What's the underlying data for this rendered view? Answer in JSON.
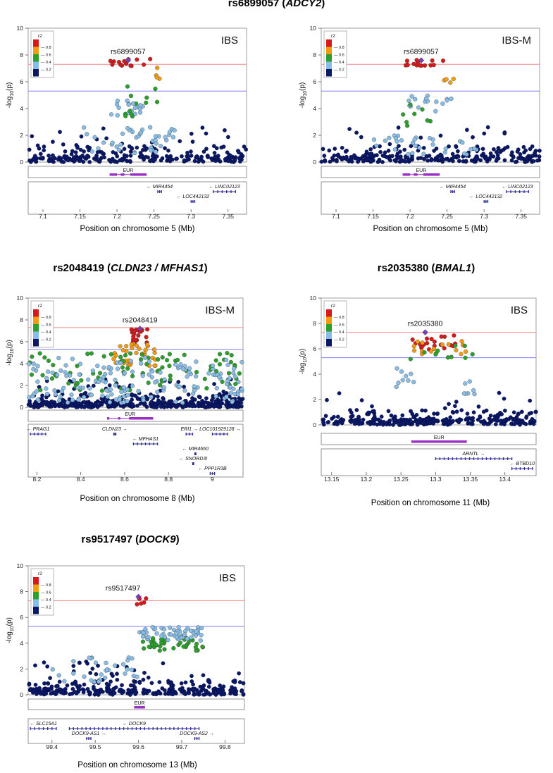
{
  "chart_data": [
    {
      "type": "scatter",
      "title": {
        "snp": "rs6899057",
        "gene": "ADCY2"
      },
      "label": "IBS",
      "lead_snp": "rs6899057",
      "lead": {
        "x": 7.215,
        "y": 7.6
      },
      "ylabel": "-log10(p)",
      "xlabel": "Position on chromosome 5 (Mb)",
      "xlim": [
        7.08,
        7.375
      ],
      "ylim": [
        0,
        10
      ],
      "xticks": [
        7.1,
        7.15,
        7.2,
        7.25,
        7.3,
        7.35
      ],
      "yticks": [
        0,
        2,
        4,
        6,
        8,
        10
      ],
      "genome_wide_threshold": 7.3,
      "suggestive_threshold": 5.3,
      "legend": {
        "title": "r2",
        "levels": [
          "0.8",
          "0.6",
          "0.4",
          "0.2"
        ],
        "colors": [
          "#d7191c",
          "#f39c12",
          "#2ca02c",
          "#87bde6",
          "#0b1863"
        ]
      },
      "ld_track": {
        "label": "EUR",
        "segments": [
          [
            7.19,
            7.2
          ],
          [
            7.205,
            7.21
          ],
          [
            7.218,
            7.24
          ]
        ]
      },
      "background_density": 260,
      "clusters": [
        {
          "x": [
            7.19,
            7.245
          ],
          "y": [
            7.15,
            7.75
          ],
          "n": 14,
          "color": "red"
        },
        {
          "x": [
            7.245,
            7.26
          ],
          "y": [
            6.1,
            7.2
          ],
          "n": 4,
          "color": "orange"
        },
        {
          "x": [
            7.21,
            7.255
          ],
          "y": [
            4.3,
            5.8
          ],
          "n": 7,
          "color": "green"
        },
        {
          "x": [
            7.19,
            7.235
          ],
          "y": [
            3.4,
            4.6
          ],
          "n": 18,
          "color": "lightblue"
        },
        {
          "x": [
            7.19,
            7.24
          ],
          "y": [
            3.4,
            3.9
          ],
          "n": 5,
          "color": "green"
        },
        {
          "x": [
            7.15,
            7.28
          ],
          "y": [
            0.6,
            2.6
          ],
          "n": 40,
          "color": "lightblue"
        }
      ],
      "genes": [
        {
          "name": "MIR4454",
          "start": 7.255,
          "end": 7.26,
          "strand": "-",
          "row": 0
        },
        {
          "name": "LINC02123",
          "start": 7.33,
          "end": 7.36,
          "strand": "-",
          "row": 0
        },
        {
          "name": "LOC442132",
          "start": 7.3,
          "end": 7.305,
          "strand": "-",
          "row": 1
        }
      ]
    },
    {
      "type": "scatter",
      "title": {
        "snp": "",
        "gene": ""
      },
      "label": "IBS-M",
      "lead_snp": "rs6899057",
      "lead": {
        "x": 7.215,
        "y": 7.6
      },
      "ylabel": "-log10(p)",
      "xlabel": "Position on chromosome 5 (Mb)",
      "xlim": [
        7.08,
        7.375
      ],
      "ylim": [
        0,
        10
      ],
      "xticks": [
        7.1,
        7.15,
        7.2,
        7.25,
        7.3,
        7.35
      ],
      "yticks": [
        0,
        2,
        4,
        6,
        8,
        10
      ],
      "genome_wide_threshold": 7.3,
      "suggestive_threshold": 5.3,
      "legend": {
        "title": "r2",
        "levels": [
          "0.8",
          "0.6",
          "0.4",
          "0.2"
        ],
        "colors": [
          "#d7191c",
          "#f39c12",
          "#2ca02c",
          "#87bde6",
          "#0b1863"
        ]
      },
      "ld_track": {
        "label": "EUR",
        "segments": [
          [
            7.19,
            7.2
          ],
          [
            7.205,
            7.21
          ],
          [
            7.218,
            7.24
          ]
        ]
      },
      "background_density": 260,
      "clusters": [
        {
          "x": [
            7.19,
            7.245
          ],
          "y": [
            7.15,
            7.75
          ],
          "n": 14,
          "color": "red"
        },
        {
          "x": [
            7.245,
            7.26
          ],
          "y": [
            5.8,
            6.3
          ],
          "n": 4,
          "color": "orange"
        },
        {
          "x": [
            7.19,
            7.26
          ],
          "y": [
            3.7,
            5.0
          ],
          "n": 16,
          "color": "lightblue"
        },
        {
          "x": [
            7.19,
            7.24
          ],
          "y": [
            2.5,
            4.4
          ],
          "n": 8,
          "color": "green"
        },
        {
          "x": [
            7.15,
            7.29
          ],
          "y": [
            0.5,
            2.0
          ],
          "n": 30,
          "color": "lightblue"
        }
      ],
      "genes": [
        {
          "name": "MIR4454",
          "start": 7.255,
          "end": 7.26,
          "strand": "-",
          "row": 0
        },
        {
          "name": "LINC02123",
          "start": 7.33,
          "end": 7.36,
          "strand": "-",
          "row": 0
        },
        {
          "name": "LOC442132",
          "start": 7.3,
          "end": 7.305,
          "strand": "-",
          "row": 1
        }
      ]
    },
    {
      "type": "scatter",
      "title": {
        "snp": "rs2048419",
        "gene": "CLDN23 / MFHAS1"
      },
      "label": "IBS-M",
      "lead_snp": "rs2048419",
      "lead": {
        "x": 8.67,
        "y": 7.2
      },
      "ylabel": "-log10(p)",
      "xlabel": "Position on chromosome 8 (Mb)",
      "xlim": [
        8.16,
        9.14
      ],
      "ylim": [
        0,
        10
      ],
      "xticks": [
        8.2,
        8.4,
        8.6,
        8.8,
        9
      ],
      "yticks": [
        0,
        2,
        4,
        6,
        8,
        10
      ],
      "genome_wide_threshold": 7.3,
      "suggestive_threshold": 5.3,
      "legend": {
        "title": "r2",
        "levels": [
          "0.8",
          "0.6",
          "0.4",
          "0.2"
        ],
        "colors": [
          "#d7191c",
          "#f39c12",
          "#2ca02c",
          "#87bde6",
          "#0b1863"
        ]
      },
      "ld_track": {
        "label": "EUR",
        "segments": [
          [
            8.52,
            8.53
          ],
          [
            8.57,
            8.58
          ],
          [
            8.62,
            8.73
          ]
        ]
      },
      "background_density": 420,
      "clusters": [
        {
          "x": [
            8.63,
            8.71
          ],
          "y": [
            5.8,
            7.2
          ],
          "n": 22,
          "color": "red"
        },
        {
          "x": [
            8.55,
            8.74
          ],
          "y": [
            3.8,
            6.0
          ],
          "n": 35,
          "color": "orange"
        },
        {
          "x": [
            8.16,
            9.14
          ],
          "y": [
            1.5,
            5.0
          ],
          "n": 90,
          "color": "green"
        },
        {
          "x": [
            8.16,
            9.14
          ],
          "y": [
            0.4,
            4.6
          ],
          "n": 170,
          "color": "lightblue"
        }
      ],
      "genes": [
        {
          "name": "PRAG1",
          "start": 8.17,
          "end": 8.24,
          "strand": "-",
          "row": 0
        },
        {
          "name": "CLDN23",
          "start": 8.55,
          "end": 8.56,
          "strand": "+",
          "row": 0
        },
        {
          "name": "ERI1",
          "start": 8.88,
          "end": 8.91,
          "strand": "+",
          "row": 0
        },
        {
          "name": "LOC101929128",
          "start": 9.0,
          "end": 9.07,
          "strand": "+",
          "row": 0
        },
        {
          "name": "MFHAS1",
          "start": 8.64,
          "end": 8.75,
          "strand": "-",
          "row": 1
        },
        {
          "name": "MIR4660",
          "start": 8.92,
          "end": 8.925,
          "strand": "-",
          "row": 2
        },
        {
          "name": "SNORD3I",
          "start": 8.91,
          "end": 8.915,
          "strand": "-",
          "row": 3
        },
        {
          "name": "PPP1R3B",
          "start": 8.99,
          "end": 9.01,
          "strand": "-",
          "row": 4
        }
      ]
    },
    {
      "type": "scatter",
      "title": {
        "snp": "rs2035380",
        "gene": "BMAL1"
      },
      "label": "IBS",
      "lead_snp": "rs2035380",
      "lead": {
        "x": 13.285,
        "y": 7.3
      },
      "ylabel": "-log10(p)",
      "xlabel": "Position on chromosome 11 (Mb)",
      "xlim": [
        13.135,
        13.445
      ],
      "ylim": [
        0,
        10
      ],
      "xticks": [
        13.15,
        13.2,
        13.25,
        13.3,
        13.35,
        13.4
      ],
      "yticks": [
        0,
        2,
        4,
        6,
        8,
        10
      ],
      "genome_wide_threshold": 7.3,
      "suggestive_threshold": 5.3,
      "legend": {
        "title": "r2",
        "levels": [
          "0.8",
          "0.6",
          "0.4",
          "0.2"
        ],
        "colors": [
          "#d7191c",
          "#f39c12",
          "#2ca02c",
          "#87bde6",
          "#0b1863"
        ]
      },
      "ld_track": {
        "label": "EUR",
        "segments": [
          [
            13.265,
            13.345
          ]
        ]
      },
      "background_density": 300,
      "clusters": [
        {
          "x": [
            13.265,
            13.33
          ],
          "y": [
            5.9,
            7.1
          ],
          "n": 22,
          "color": "red"
        },
        {
          "x": [
            13.265,
            13.345
          ],
          "y": [
            5.5,
            6.6
          ],
          "n": 16,
          "color": "orange"
        },
        {
          "x": [
            13.26,
            13.355
          ],
          "y": [
            4.8,
            6.3
          ],
          "n": 10,
          "color": "green"
        },
        {
          "x": [
            13.24,
            13.27
          ],
          "y": [
            3.0,
            4.6
          ],
          "n": 9,
          "color": "lightblue"
        },
        {
          "x": [
            13.34,
            13.36
          ],
          "y": [
            1.5,
            3.5
          ],
          "n": 7,
          "color": "lightblue"
        }
      ],
      "genes": [
        {
          "name": "ARNTL",
          "start": 13.3,
          "end": 13.41,
          "strand": "+",
          "row": 0
        },
        {
          "name": "BTBD10",
          "start": 13.41,
          "end": 13.44,
          "strand": "-",
          "row": 1
        }
      ]
    },
    {
      "type": "scatter",
      "title": {
        "snp": "rs9517497",
        "gene": "DOCK9"
      },
      "label": "IBS",
      "lead_snp": "rs9517497",
      "lead": {
        "x": 99.6,
        "y": 7.6
      },
      "ylabel": "-log10(p)",
      "xlabel": "Position on chromosome 13 (Mb)",
      "xlim": [
        99.345,
        99.845
      ],
      "ylim": [
        0,
        10
      ],
      "xticks": [
        99.4,
        99.5,
        99.6,
        99.7,
        99.8
      ],
      "yticks": [
        0,
        2,
        4,
        6,
        8,
        10
      ],
      "genome_wide_threshold": 7.3,
      "suggestive_threshold": 5.3,
      "legend": {
        "title": "r2",
        "levels": [
          "0.8",
          "0.6",
          "0.4",
          "0.2"
        ],
        "colors": [
          "#d7191c",
          "#f39c12",
          "#2ca02c",
          "#87bde6",
          "#0b1863"
        ]
      },
      "ld_track": {
        "label": "EUR",
        "segments": [
          [
            99.59,
            99.615
          ]
        ]
      },
      "background_density": 320,
      "clusters": [
        {
          "x": [
            99.595,
            99.62
          ],
          "y": [
            6.9,
            7.6
          ],
          "n": 6,
          "color": "red"
        },
        {
          "x": [
            99.61,
            99.75
          ],
          "y": [
            3.4,
            4.4
          ],
          "n": 45,
          "color": "green"
        },
        {
          "x": [
            99.6,
            99.75
          ],
          "y": [
            4.2,
            5.3
          ],
          "n": 55,
          "color": "lightblue"
        },
        {
          "x": [
            99.4,
            99.6
          ],
          "y": [
            1.0,
            3.0
          ],
          "n": 30,
          "color": "lightblue"
        }
      ],
      "genes": [
        {
          "name": "SLC15A1",
          "start": 99.35,
          "end": 99.41,
          "strand": "-",
          "row": 0
        },
        {
          "name": "DOCK9",
          "start": 99.44,
          "end": 99.74,
          "strand": "-",
          "row": 0
        },
        {
          "name": "DOCK9-AS1",
          "start": 99.48,
          "end": 99.49,
          "strand": "+",
          "row": 1
        },
        {
          "name": "DOCK9-AS2",
          "start": 99.73,
          "end": 99.74,
          "strand": "+",
          "row": 1
        }
      ]
    }
  ]
}
